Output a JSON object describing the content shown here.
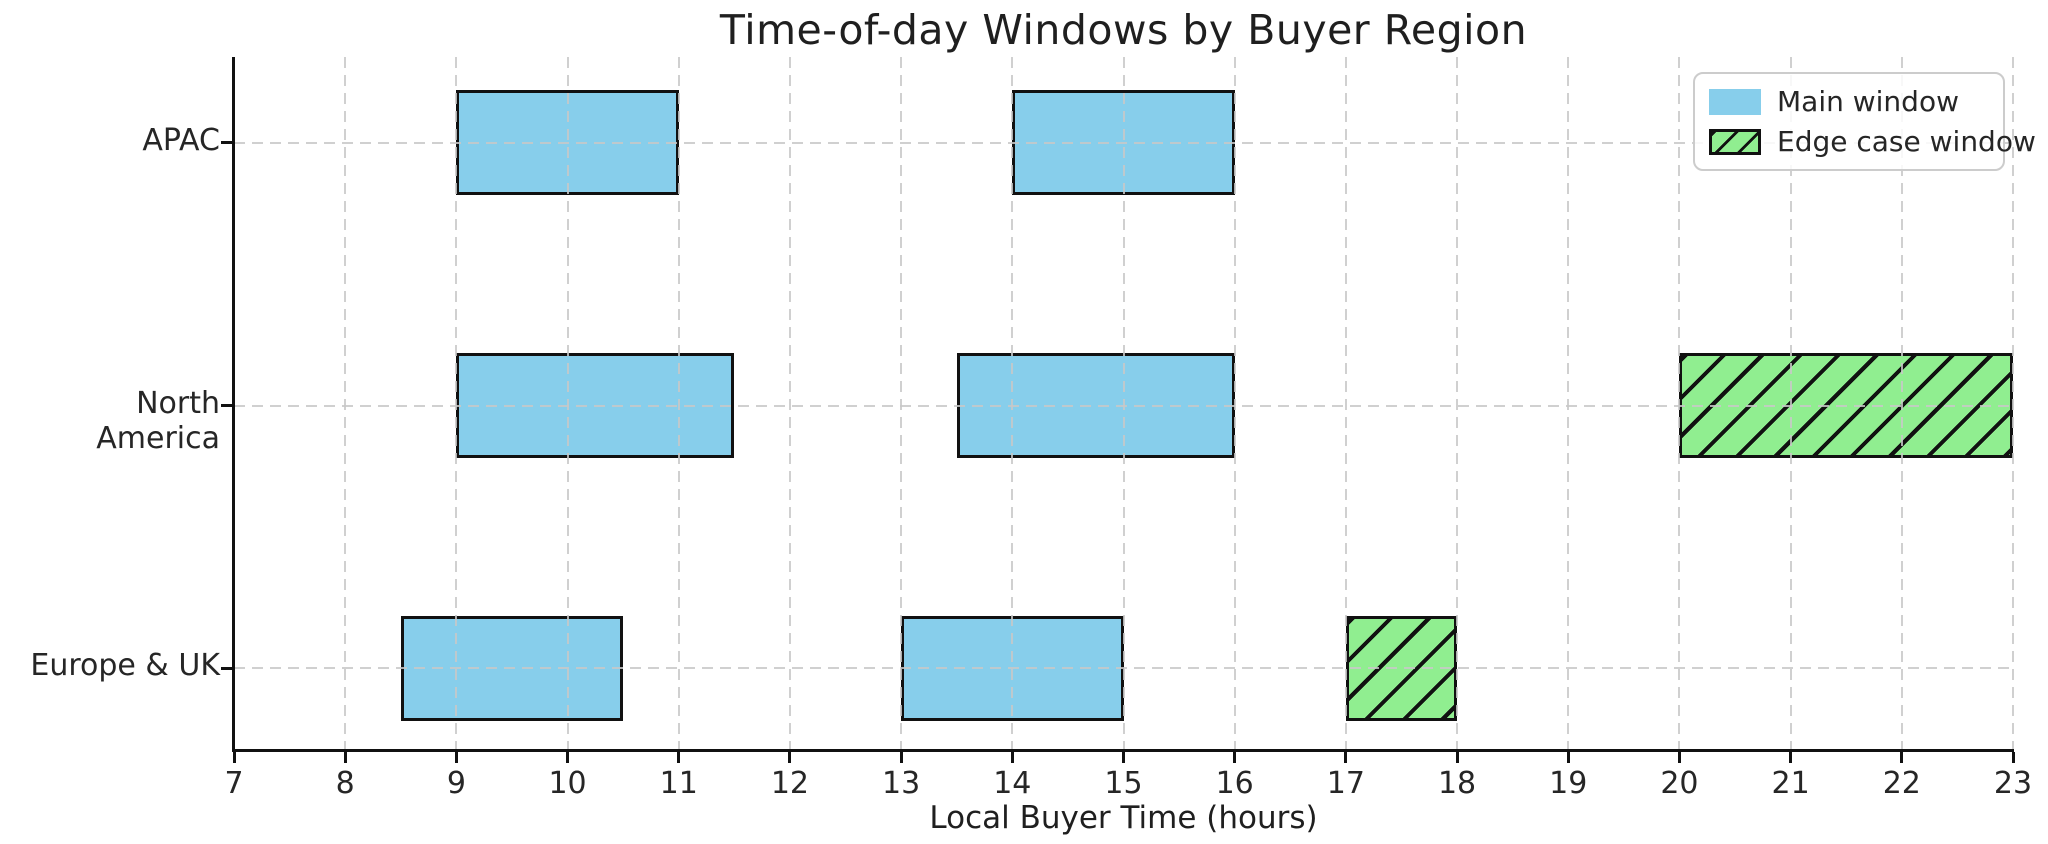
{
  "chart_data": {
    "type": "bar",
    "variant": "horizontal-interval-gantt",
    "title": "Time-of-day Windows by Buyer Region",
    "xlabel": "Local Buyer Time (hours)",
    "ylabel": "",
    "xlim": [
      7,
      23
    ],
    "xticks": [
      7,
      8,
      9,
      10,
      11,
      12,
      13,
      14,
      15,
      16,
      17,
      18,
      19,
      20,
      21,
      22,
      23
    ],
    "categories": [
      "APAC",
      "North America",
      "Europe & UK"
    ],
    "series": [
      {
        "name": "Main window",
        "color": "#87CEEB",
        "hatch": false,
        "intervals": [
          {
            "region": "APAC",
            "start": 9,
            "end": 11
          },
          {
            "region": "APAC",
            "start": 14,
            "end": 16
          },
          {
            "region": "North America",
            "start": 9,
            "end": 11.5
          },
          {
            "region": "North America",
            "start": 13.5,
            "end": 16
          },
          {
            "region": "Europe & UK",
            "start": 8.5,
            "end": 10.5
          },
          {
            "region": "Europe & UK",
            "start": 13,
            "end": 15
          }
        ]
      },
      {
        "name": "Edge case window",
        "color": "#90EE90",
        "hatch": true,
        "intervals": [
          {
            "region": "North America",
            "start": 20,
            "end": 23
          },
          {
            "region": "Europe & UK",
            "start": 17,
            "end": 18
          }
        ]
      }
    ],
    "legend": {
      "position": "upper right",
      "entries": [
        "Main window",
        "Edge case window"
      ]
    },
    "grid": {
      "visible": true,
      "style": "dashed",
      "color": "#cccccc"
    },
    "edge_color": "#111111",
    "background": "#ffffff"
  }
}
